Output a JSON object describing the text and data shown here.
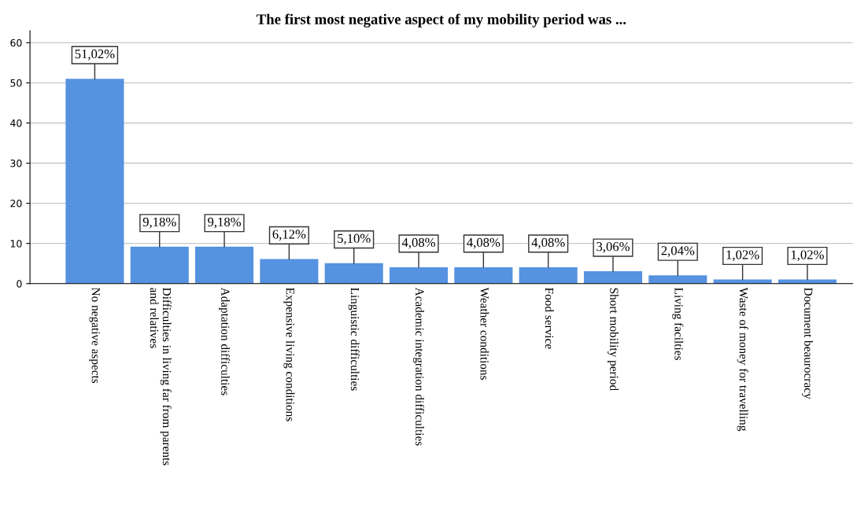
{
  "chart_data": {
    "type": "bar",
    "title": "The first most negative aspect of my mobility period was ...",
    "categories": [
      "No negative aspects",
      "Difficulties in living far from parents\nand relatives",
      "Adaptation difficulties",
      "Expensive living conditions",
      "Linguistic difficulties",
      "Academic integration difficulties",
      "Weather conditions",
      "Food service",
      "Short mobility period",
      "Living facilties",
      "Waste of money for travelling",
      "Document beaurocracy"
    ],
    "values": [
      51.02,
      9.18,
      9.18,
      6.12,
      5.1,
      4.08,
      4.08,
      4.08,
      3.06,
      2.04,
      1.02,
      1.02
    ],
    "value_labels": [
      "51,02%",
      "9,18%",
      "9,18%",
      "6,12%",
      "5,10%",
      "4,08%",
      "4,08%",
      "4,08%",
      "3,06%",
      "2,04%",
      "1,02%",
      "1,02%"
    ],
    "color": "#5592e0",
    "ylim": [
      0,
      63
    ],
    "yticks": [
      0,
      10,
      20,
      30,
      40,
      50,
      60
    ],
    "grid": "y"
  }
}
